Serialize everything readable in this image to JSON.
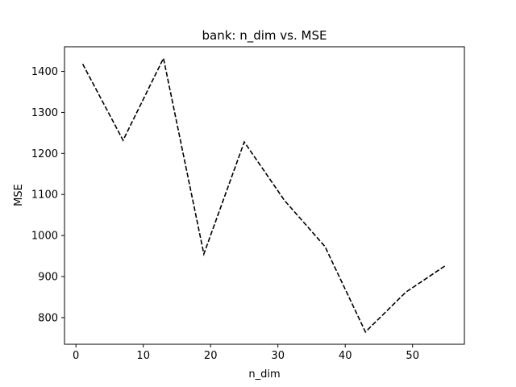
{
  "chart_data": {
    "type": "line",
    "title": "bank: n_dim vs. MSE",
    "xlabel": "n_dim",
    "ylabel": "MSE",
    "xlim": [
      -1.7,
      57.7
    ],
    "ylim": [
      735,
      1460
    ],
    "xticks": [
      0,
      10,
      20,
      30,
      40,
      50
    ],
    "yticks": [
      800,
      900,
      1000,
      1100,
      1200,
      1300,
      1400
    ],
    "grid": false,
    "series": [
      {
        "line_style": "dashed",
        "color": "#000000",
        "x": [
          1,
          7,
          13,
          19,
          25,
          31,
          37,
          43,
          49,
          55
        ],
        "y": [
          1418,
          1232,
          1432,
          955,
          1228,
          1085,
          973,
          765,
          862,
          928
        ]
      }
    ]
  }
}
